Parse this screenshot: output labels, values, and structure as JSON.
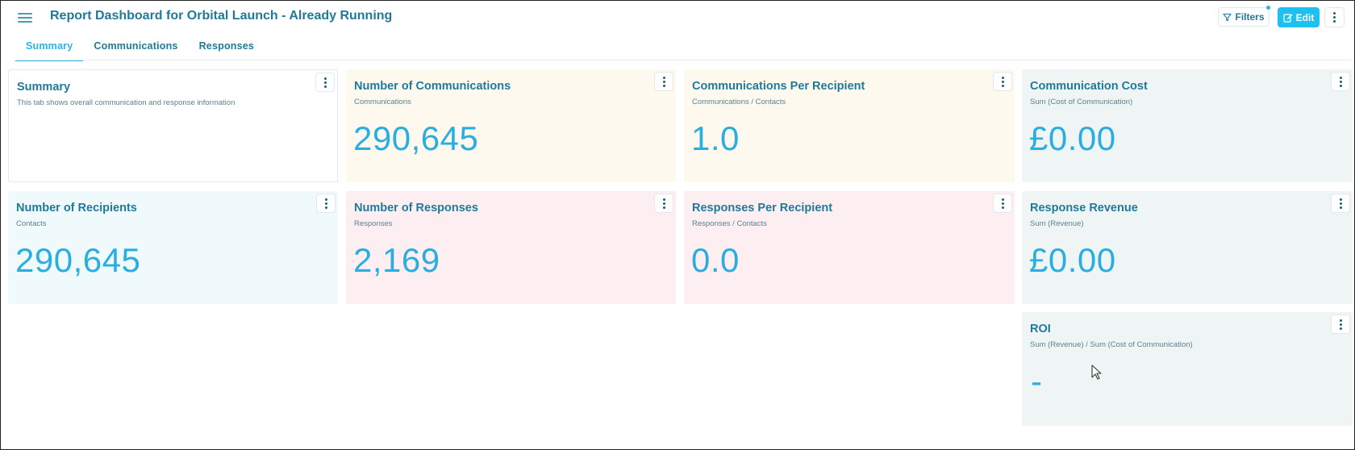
{
  "header": {
    "title": "Report Dashboard for Orbital Launch - Already Running",
    "filters_label": "Filters",
    "edit_label": "Edit"
  },
  "tabs": [
    {
      "label": "Summary",
      "active": true
    },
    {
      "label": "Communications",
      "active": false
    },
    {
      "label": "Responses",
      "active": false
    }
  ],
  "cards": {
    "summary": {
      "title": "Summary",
      "subtitle": "This tab shows overall communication and response information"
    },
    "num_communications": {
      "title": "Number of Communications",
      "subtitle": "Communications",
      "value": "290,645"
    },
    "comm_per_recipient": {
      "title": "Communications Per Recipient",
      "subtitle": "Communications / Contacts",
      "value": "1.0"
    },
    "comm_cost": {
      "title": "Communication Cost",
      "subtitle": "Sum (Cost of Communication)",
      "value": "£0.00"
    },
    "num_recipients": {
      "title": "Number of Recipients",
      "subtitle": "Contacts",
      "value": "290,645"
    },
    "num_responses": {
      "title": "Number of Responses",
      "subtitle": "Responses",
      "value": "2,169"
    },
    "resp_per_recipient": {
      "title": "Responses Per Recipient",
      "subtitle": "Responses / Contacts",
      "value": "0.0"
    },
    "resp_revenue": {
      "title": "Response Revenue",
      "subtitle": "Sum (Revenue)",
      "value": "£0.00"
    },
    "roi": {
      "title": "ROI",
      "subtitle": "Sum (Revenue) / Sum (Cost of Communication)",
      "value": "-"
    }
  },
  "colors": {
    "accent": "#1ec0ef",
    "title": "#1f7a9a",
    "value": "#2aaee0",
    "cream_card": "#fdf9ef",
    "teal_card": "#eff5f4",
    "blue_card": "#f0fafd",
    "pink_card": "#fdeff1"
  },
  "icons": {
    "menu": "hamburger-icon",
    "filters": "filter-icon",
    "edit": "edit-icon",
    "more": "vertical-dots-icon"
  }
}
